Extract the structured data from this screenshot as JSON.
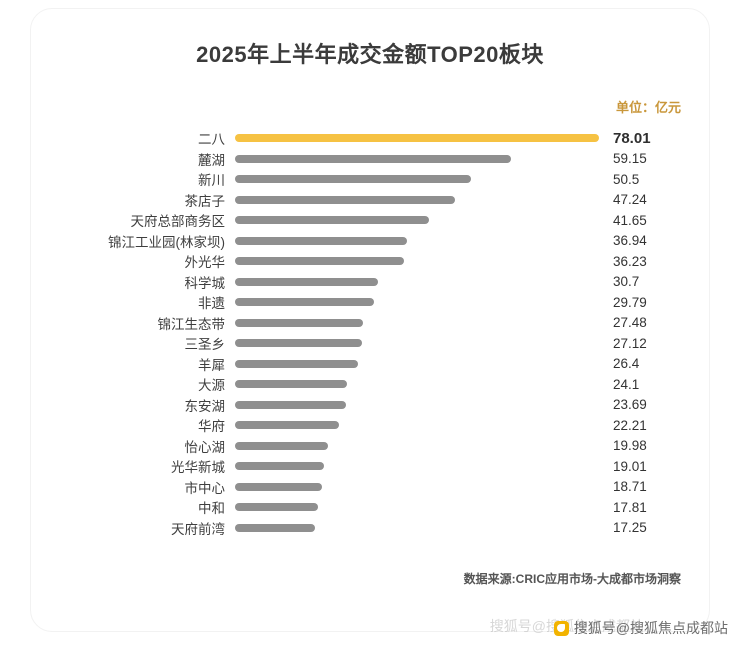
{
  "chart_data": {
    "type": "bar",
    "orientation": "horizontal",
    "title": "2025年上半年成交金额TOP20板块",
    "unit_label": "单位：亿元",
    "categories": [
      "二八",
      "麓湖",
      "新川",
      "茶店子",
      "天府总部商务区",
      "锦江工业园(林家坝)",
      "外光华",
      "科学城",
      "非遗",
      "锦江生态带",
      "三圣乡",
      "羊犀",
      "大源",
      "东安湖",
      "华府",
      "怡心湖",
      "光华新城",
      "市中心",
      "中和",
      "天府前湾"
    ],
    "values": [
      78.01,
      59.15,
      50.5,
      47.24,
      41.65,
      36.94,
      36.23,
      30.7,
      29.79,
      27.48,
      27.12,
      26.4,
      24.1,
      23.69,
      22.21,
      19.98,
      19.01,
      18.71,
      17.81,
      17.25
    ],
    "highlight_index": 0,
    "highlight_color": "#f6c243",
    "bar_color": "#8f8f8f",
    "xlim": [
      0,
      78.01
    ],
    "grid": false,
    "legend": false
  },
  "footer": {
    "source": "数据来源:CRIC应用市场-大成都市场洞察"
  },
  "watermark": {
    "icon": "sohu-logo",
    "icon_color": "#f2b300",
    "text": "搜狐号@搜狐焦点成都站",
    "ghost_text": "搜狐号@搜狐焦点成都站"
  }
}
